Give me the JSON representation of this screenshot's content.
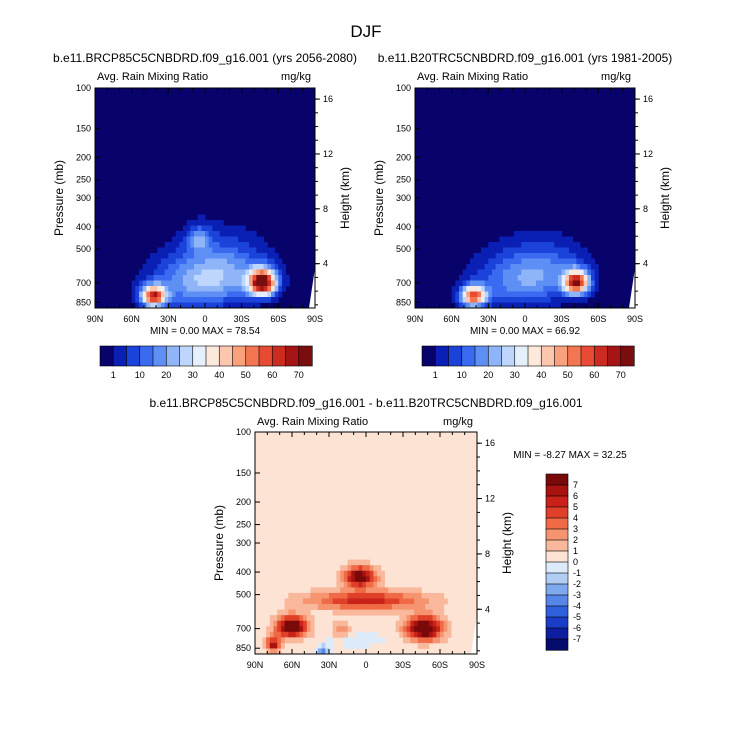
{
  "page_title": "DJF",
  "chart_data": [
    {
      "type": "heatmap",
      "title": "b.e11.BRCP85C5CNBDRD.f09_g16.001 (yrs 2056-2080)",
      "left_subtitle": "Avg. Rain Mixing Ratio",
      "right_subtitle": "mg/kg",
      "xlabel": "",
      "ylabel": "Pressure (mb)",
      "ylabel_right": "Height (km)",
      "x_ticks": [
        "90N",
        "60N",
        "30N",
        "0",
        "30S",
        "60S",
        "90S"
      ],
      "x_range": [
        90,
        -90
      ],
      "y_ticks": [
        100,
        150,
        200,
        250,
        300,
        400,
        500,
        700,
        850
      ],
      "y_range_mb": [
        100,
        900
      ],
      "height_ticks_km": [
        4,
        8,
        12,
        16
      ],
      "min": "0.00",
      "max": "78.54",
      "min_label": "MIN =",
      "max_label": "MAX =",
      "blobs": [
        {
          "lat": 42,
          "p": 800,
          "amp": 0.82,
          "sx": 10,
          "sy": 80
        },
        {
          "lat": -47,
          "p": 700,
          "amp": 1.0,
          "sx": 11,
          "sy": 90
        },
        {
          "lat": 5,
          "p": 700,
          "amp": 0.3,
          "sx": 40,
          "sy": 200
        },
        {
          "lat": 5,
          "p": 450,
          "amp": 0.22,
          "sx": 10,
          "sy": 60
        },
        {
          "lat": -20,
          "p": 600,
          "amp": 0.18,
          "sx": 35,
          "sy": 180
        }
      ]
    },
    {
      "type": "heatmap",
      "title": "b.e11.B20TRC5CNBDRD.f09_g16.001 (yrs 1981-2005)",
      "left_subtitle": "Avg. Rain Mixing Ratio",
      "right_subtitle": "mg/kg",
      "xlabel": "",
      "ylabel": "Pressure (mb)",
      "ylabel_right": "Height (km)",
      "x_ticks": [
        "90N",
        "60N",
        "30N",
        "0",
        "30S",
        "60S",
        "90S"
      ],
      "x_range": [
        90,
        -90
      ],
      "y_ticks": [
        100,
        150,
        200,
        250,
        300,
        400,
        500,
        700,
        850
      ],
      "y_range_mb": [
        100,
        900
      ],
      "height_ticks_km": [
        4,
        8,
        12,
        16
      ],
      "min": "0.00",
      "max": "66.92",
      "min_label": "MIN =",
      "max_label": "MAX =",
      "blobs": [
        {
          "lat": 42,
          "p": 800,
          "amp": 0.75,
          "sx": 10,
          "sy": 80
        },
        {
          "lat": -42,
          "p": 700,
          "amp": 0.85,
          "sx": 10,
          "sy": 80
        },
        {
          "lat": 5,
          "p": 700,
          "amp": 0.25,
          "sx": 40,
          "sy": 200
        },
        {
          "lat": -20,
          "p": 600,
          "amp": 0.15,
          "sx": 35,
          "sy": 160
        }
      ]
    },
    {
      "type": "heatmap",
      "title": "b.e11.BRCP85C5CNBDRD.f09_g16.001 - b.e11.B20TRC5CNBDRD.f09_g16.001",
      "left_subtitle": "Avg. Rain Mixing Ratio",
      "right_subtitle": "mg/kg",
      "xlabel": "",
      "ylabel": "Pressure (mb)",
      "ylabel_right": "Height (km)",
      "x_ticks": [
        "90N",
        "60N",
        "30N",
        "0",
        "30S",
        "60S",
        "90S"
      ],
      "x_range": [
        90,
        -90
      ],
      "y_ticks": [
        100,
        150,
        200,
        250,
        300,
        400,
        500,
        700,
        850
      ],
      "y_range_mb": [
        100,
        900
      ],
      "height_ticks_km": [
        4,
        8,
        12,
        16
      ],
      "min": "-8.27",
      "max": "32.25",
      "min_label": "MIN =",
      "max_label": "MAX =",
      "blobs": [
        {
          "lat": 5,
          "p": 420,
          "amp": 8,
          "sx": 12,
          "sy": 40
        },
        {
          "lat": 0,
          "p": 530,
          "amp": 5,
          "sx": 45,
          "sy": 50
        },
        {
          "lat": 60,
          "p": 690,
          "amp": 9,
          "sx": 12,
          "sy": 70
        },
        {
          "lat": -47,
          "p": 700,
          "amp": 9,
          "sx": 14,
          "sy": 80
        },
        {
          "lat": 75,
          "p": 820,
          "amp": 6,
          "sx": 6,
          "sy": 60
        },
        {
          "lat": 35,
          "p": 870,
          "amp": -4,
          "sx": 5,
          "sy": 40
        },
        {
          "lat": 10,
          "p": 780,
          "amp": -1.5,
          "sx": 25,
          "sy": 60
        },
        {
          "lat": 20,
          "p": 720,
          "amp": 2.5,
          "sx": 8,
          "sy": 60
        }
      ]
    }
  ],
  "colorbars": {
    "abs_labels": [
      "1",
      "10",
      "20",
      "30",
      "40",
      "50",
      "60",
      "70"
    ],
    "abs_colors": [
      "#08026b",
      "#0a1fb4",
      "#1c43d9",
      "#3a6af0",
      "#5d8ff5",
      "#8fb4f8",
      "#bed6fb",
      "#e6f0fd",
      "#fde9dc",
      "#fcc7ae",
      "#f9a07c",
      "#f47552",
      "#e84b33",
      "#cc2c1f",
      "#a51516",
      "#7a0d0d"
    ],
    "diff_labels": [
      "7",
      "6",
      "5",
      "4",
      "3",
      "2",
      "1",
      "0",
      "-1",
      "-2",
      "-3",
      "-4",
      "-5",
      "-6",
      "-7"
    ],
    "diff_colors": [
      "#7a0a0a",
      "#a8120f",
      "#c8221a",
      "#e03f28",
      "#ef6a45",
      "#f5946f",
      "#f9b89b",
      "#fde3d4",
      "#dceaf9",
      "#b0cdf4",
      "#7fa9ee",
      "#5687e8",
      "#2f60de",
      "#1a3dc8",
      "#0d1f9e",
      "#050b6b"
    ]
  }
}
